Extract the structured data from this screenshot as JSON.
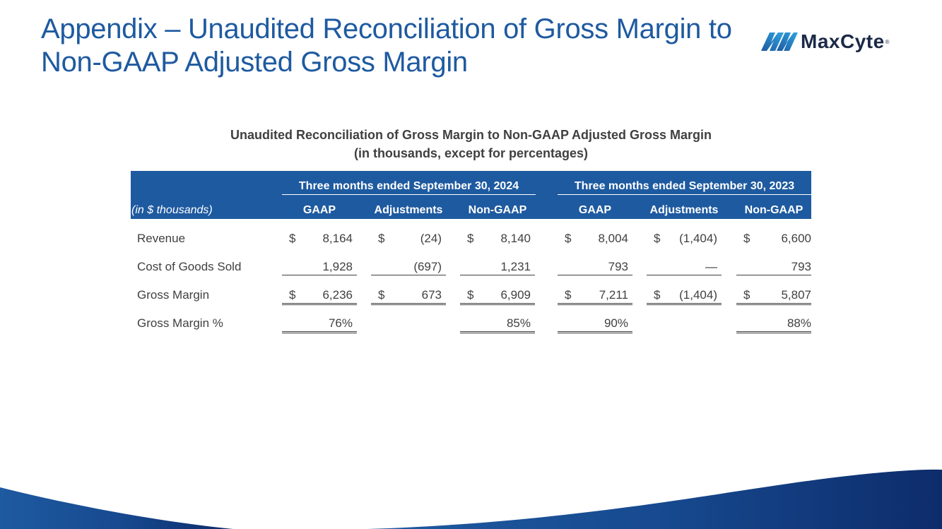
{
  "slide": {
    "title_line1": "Appendix – Unaudited Reconciliation of Gross Margin to",
    "title_line2": "Non-GAAP Adjusted Gross Margin"
  },
  "logo": {
    "text": "MaxCyte",
    "reg_mark": "®",
    "icon": "maxcyte-logo-icon",
    "color": "#1b2a47"
  },
  "colors": {
    "accent": "#1e5aa0",
    "wave_dark": "#0d2c6b"
  },
  "table": {
    "caption_line1": "Unaudited Reconciliation of Gross Margin to Non-GAAP Adjusted Gross Margin",
    "caption_line2": "(in thousands, except for percentages)",
    "units_label": "(in $ thousands)",
    "periods": [
      "Three months ended September 30, 2024",
      "Three months ended September 30, 2023"
    ],
    "column_headers": [
      "GAAP",
      "Adjustments",
      "Non-GAAP",
      "GAAP",
      "Adjustments",
      "Non-GAAP"
    ],
    "rows": [
      {
        "label": "Revenue",
        "cells": [
          {
            "cur": "$",
            "val": "8,164"
          },
          {
            "cur": "$",
            "val": "(24)"
          },
          {
            "cur": "$",
            "val": "8,140"
          },
          {
            "cur": "$",
            "val": "8,004"
          },
          {
            "cur": "$",
            "val": "(1,404)"
          },
          {
            "cur": "$",
            "val": "6,600"
          }
        ]
      },
      {
        "label": "Cost of Goods Sold",
        "cells": [
          {
            "cur": "",
            "val": "1,928"
          },
          {
            "cur": "",
            "val": "(697)"
          },
          {
            "cur": "",
            "val": "1,231"
          },
          {
            "cur": "",
            "val": "793"
          },
          {
            "cur": "",
            "val": "—"
          },
          {
            "cur": "",
            "val": "793"
          }
        ]
      },
      {
        "label": "Gross Margin",
        "cells": [
          {
            "cur": "$",
            "val": "6,236"
          },
          {
            "cur": "$",
            "val": "673"
          },
          {
            "cur": "$",
            "val": "6,909"
          },
          {
            "cur": "$",
            "val": "7,211"
          },
          {
            "cur": "$",
            "val": "(1,404)"
          },
          {
            "cur": "$",
            "val": "5,807"
          }
        ]
      },
      {
        "label": "Gross Margin %",
        "cells": [
          {
            "cur": "",
            "val": "76%"
          },
          {
            "cur": "",
            "val": ""
          },
          {
            "cur": "",
            "val": "85%"
          },
          {
            "cur": "",
            "val": "90%"
          },
          {
            "cur": "",
            "val": ""
          },
          {
            "cur": "",
            "val": "88%"
          }
        ]
      }
    ]
  }
}
